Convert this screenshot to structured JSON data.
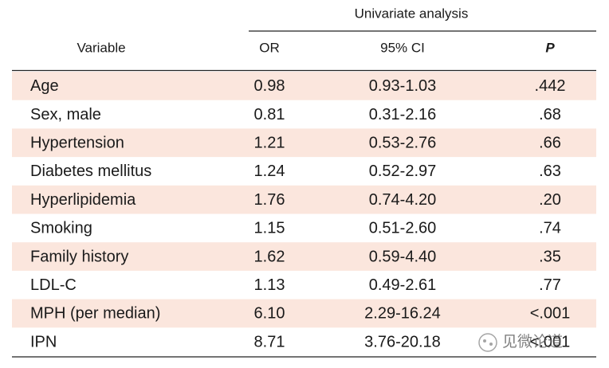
{
  "table": {
    "group_header": "Univariate analysis",
    "columns": [
      "Variable",
      "OR",
      "95% CI",
      "P"
    ],
    "rows": [
      [
        "Age",
        "0.98",
        "0.93-1.03",
        ".442"
      ],
      [
        "Sex, male",
        "0.81",
        "0.31-2.16",
        ".68"
      ],
      [
        "Hypertension",
        "1.21",
        "0.53-2.76",
        ".66"
      ],
      [
        "Diabetes mellitus",
        "1.24",
        "0.52-2.97",
        ".63"
      ],
      [
        "Hyperlipidemia",
        "1.76",
        "0.74-4.20",
        ".20"
      ],
      [
        "Smoking",
        "1.15",
        "0.51-2.60",
        ".74"
      ],
      [
        "Family history",
        "1.62",
        "0.59-4.40",
        ".35"
      ],
      [
        "LDL-C",
        "1.13",
        "0.49-2.61",
        ".77"
      ],
      [
        "MPH (per median)",
        "6.10",
        "2.29-16.24",
        "<.001"
      ],
      [
        "IPN",
        "8.71",
        "3.76-20.18",
        "<.001"
      ]
    ]
  },
  "watermark": "见微论道"
}
